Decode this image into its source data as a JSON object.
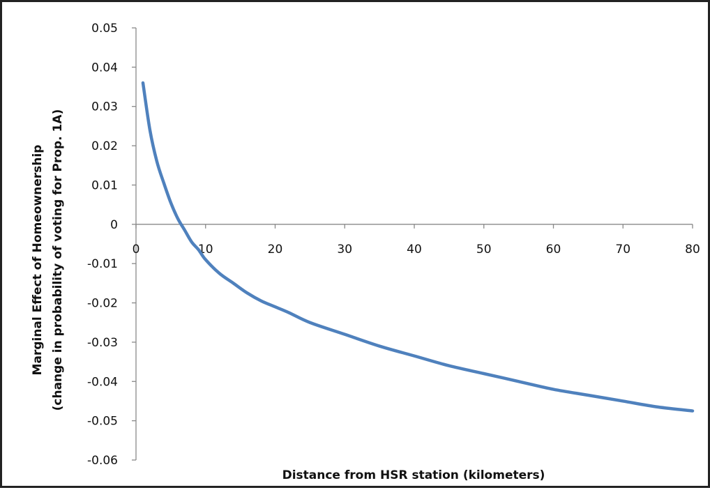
{
  "chart_data": {
    "type": "line",
    "title": "",
    "xlabel": "Distance from HSR station (kilometers)",
    "ylabel": [
      "Marginal Effect of Homeownership",
      "(change in probability of voting for Prop. 1A)"
    ],
    "xlim": [
      0,
      80
    ],
    "ylim": [
      -0.06,
      0.05
    ],
    "x_ticks": [
      "0",
      "10",
      "20",
      "30",
      "40",
      "50",
      "60",
      "70",
      "80"
    ],
    "x_tick_values": [
      0,
      10,
      20,
      30,
      40,
      50,
      60,
      70,
      80
    ],
    "y_ticks": [
      "0.05",
      "0.04",
      "0.03",
      "0.02",
      "0.01",
      "0",
      "-0.01",
      "-0.02",
      "-0.03",
      "-0.04",
      "-0.05",
      "-0.06"
    ],
    "y_tick_values": [
      0.05,
      0.04,
      0.03,
      0.02,
      0.01,
      0,
      -0.01,
      -0.02,
      -0.03,
      -0.04,
      -0.05,
      -0.06
    ],
    "grid": false,
    "legend": "none",
    "line_color": "#4f81bd",
    "series": [
      {
        "x": [
          1,
          2,
          3,
          4,
          5,
          6,
          7,
          8,
          9,
          10,
          12,
          14,
          16,
          18,
          20,
          22,
          25,
          30,
          35,
          40,
          45,
          50,
          55,
          60,
          65,
          70,
          75,
          80
        ],
        "values": [
          0.036,
          0.024,
          0.016,
          0.0105,
          0.0055,
          0.0015,
          -0.0015,
          -0.0045,
          -0.0065,
          -0.009,
          -0.0125,
          -0.015,
          -0.0175,
          -0.0195,
          -0.021,
          -0.0225,
          -0.025,
          -0.028,
          -0.031,
          -0.0335,
          -0.036,
          -0.038,
          -0.04,
          -0.042,
          -0.0435,
          -0.045,
          -0.0465,
          -0.0475
        ]
      }
    ]
  }
}
